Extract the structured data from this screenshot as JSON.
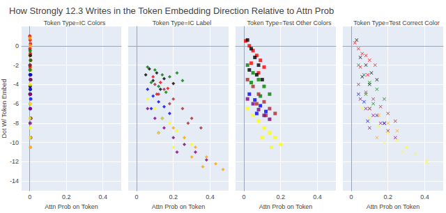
{
  "title": "How Strongly 12.3 Writes in the Token Embedding Direction Relative to Attn Prob",
  "chart_data": [
    {
      "type": "scatter",
      "title": "Token Type=IC Colors",
      "xlabel": "Attn Prob on Token",
      "ylabel": "Dot W/ Token Embed",
      "xlim": [
        -0.045,
        0.5
      ],
      "xticks": [
        0,
        0.2,
        0.4
      ],
      "ylim": [
        -15,
        2
      ],
      "yticks": [
        -14,
        -12,
        -10,
        -8,
        -6,
        -4,
        -2,
        0
      ],
      "grid": true,
      "marker": "circle",
      "series": [
        {
          "color": "#ff0000",
          "x": [
            0,
            0.002,
            0.004,
            0.001,
            0.003,
            0.005,
            0.002
          ],
          "values": [
            1,
            0.6,
            0.2,
            -0.3,
            -0.8,
            -1.5,
            -2.2
          ]
        },
        {
          "color": "#ffa500",
          "x": [
            0.001,
            0.003,
            0,
            0.005,
            0.002,
            0.004
          ],
          "values": [
            0.8,
            0,
            -1,
            -2.5,
            -4,
            -10.5
          ]
        },
        {
          "color": "#008000",
          "x": [
            0.002,
            0.004,
            0.001,
            0.006,
            0.003
          ],
          "values": [
            -0.5,
            -1.5,
            -2.5,
            -3.5,
            -4.5
          ]
        },
        {
          "color": "#000000",
          "x": [
            0.003,
            0.001,
            0.005,
            0.002,
            0.004
          ],
          "values": [
            -1,
            -2,
            -3,
            -4.2,
            -5
          ]
        },
        {
          "color": "#a52a2a",
          "x": [
            0.002,
            0.004,
            0.001,
            0.003,
            0.006
          ],
          "values": [
            -2,
            -3.5,
            -5,
            -6,
            -7.5
          ]
        },
        {
          "color": "#0000ff",
          "x": [
            0.001,
            0.003,
            0.005,
            0.002,
            0.004
          ],
          "values": [
            -3,
            -4.5,
            -5.5,
            -6.5,
            -7.5
          ]
        },
        {
          "color": "#800080",
          "x": [
            0.003,
            0.001,
            0.004,
            0.002,
            0.005
          ],
          "values": [
            -3.5,
            -5,
            -6.5,
            -8,
            -9.5
          ]
        },
        {
          "color": "#ffff00",
          "x": [
            0.002,
            0.004,
            0.001,
            0.003,
            0.002
          ],
          "values": [
            -4,
            -6,
            -7.5,
            -8.5,
            -9.5
          ]
        }
      ]
    },
    {
      "type": "scatter",
      "title": "Token Type=IC Label",
      "xlabel": "Attn Prob on Token",
      "xlim": [
        -0.045,
        0.5
      ],
      "xticks": [
        0,
        0.2,
        0.4
      ],
      "ylim": [
        -15,
        2
      ],
      "yticks": [
        -14,
        -12,
        -10,
        -8,
        -6,
        -4,
        -2,
        0
      ],
      "grid": true,
      "marker": "diamond",
      "tick_labels": "x",
      "series": [
        {
          "color": "#008000",
          "x": [
            0.06,
            0.1,
            0.14,
            0.18,
            0.22,
            0.08,
            0.12,
            0.25,
            0.16
          ],
          "values": [
            -2.2,
            -2.5,
            -3,
            -3.2,
            -2.8,
            -3.8,
            -4.2,
            -3.6,
            -4.8
          ]
        },
        {
          "color": "#000000",
          "x": [
            0.07,
            0.11,
            0.15,
            0.2,
            0.09,
            0.13,
            0.05
          ],
          "values": [
            -2.4,
            -2.8,
            -3.4,
            -3.9,
            -3.6,
            -4.5,
            -3
          ]
        },
        {
          "color": "#ff0000",
          "x": [
            0.09,
            0.13,
            0.17,
            0.11
          ],
          "values": [
            -3.2,
            -3.8,
            -4.4,
            -5
          ]
        },
        {
          "color": "#a52a2a",
          "x": [
            0.1,
            0.15,
            0.2,
            0.25,
            0.3,
            0.35,
            0.18,
            0.28,
            0.12
          ],
          "values": [
            -4,
            -4.5,
            -5.5,
            -6.5,
            -7.5,
            -8.5,
            -6,
            -8,
            -5
          ]
        },
        {
          "color": "#0000ff",
          "x": [
            0.06,
            0.09,
            0.12,
            0.15,
            0.18,
            0.08,
            0.14
          ],
          "values": [
            -4.5,
            -5.2,
            -5.8,
            -6.3,
            -7,
            -6.5,
            -7.5
          ]
        },
        {
          "color": "#800080",
          "x": [
            0.06,
            0.1,
            0.15,
            0.2,
            0.26,
            0.32,
            0.38,
            0.12,
            0.22
          ],
          "values": [
            -6.5,
            -7.5,
            -8.5,
            -9.5,
            -10.2,
            -11,
            -11.8,
            -9,
            -11
          ]
        },
        {
          "color": "#ffff00",
          "x": [
            0.06,
            0.1,
            0.14,
            0.18,
            0.22,
            0.26,
            0.3,
            0.12,
            0.2
          ],
          "values": [
            -5.5,
            -6.5,
            -7.5,
            -8,
            -8.8,
            -9.5,
            -10.2,
            -9,
            -10.5
          ]
        },
        {
          "color": "#ffa500",
          "x": [
            0.2,
            0.26,
            0.32,
            0.38,
            0.43,
            0.47,
            0.3,
            0.36
          ],
          "values": [
            -8.5,
            -9.5,
            -10.5,
            -11.5,
            -12.2,
            -12.8,
            -11.5,
            -12.5
          ]
        }
      ]
    },
    {
      "type": "scatter",
      "title": "Token Type=Test Other Colors",
      "xlabel": "Attn Prob on Token",
      "xlim": [
        -0.045,
        0.5
      ],
      "xticks": [
        0,
        0.2,
        0.4
      ],
      "ylim": [
        -15,
        2
      ],
      "yticks": [
        -14,
        -12,
        -10,
        -8,
        -6,
        -4,
        -2,
        0
      ],
      "grid": true,
      "marker": "square",
      "tick_labels": "x",
      "series": [
        {
          "color": "#ff0000",
          "x": [
            0.01,
            0.03,
            0.05,
            0.07,
            0.09,
            0.11,
            0.04,
            0.08
          ],
          "values": [
            0.5,
            0,
            -0.5,
            -1,
            -1.5,
            -2.2,
            -1.8,
            -2.8
          ]
        },
        {
          "color": "#000000",
          "x": [
            0.02,
            0.04,
            0.06,
            0.08,
            0.03,
            0.07,
            0.1
          ],
          "values": [
            0.6,
            -0.3,
            -1.2,
            -2,
            -2.5,
            -3,
            -3.5
          ]
        },
        {
          "color": "#008000",
          "x": [
            0.02,
            0.05,
            0.08,
            0.11,
            0.14,
            0.04,
            0.09
          ],
          "values": [
            -2,
            -2.8,
            -3.5,
            -4.2,
            -5,
            -3.8,
            -5.2
          ]
        },
        {
          "color": "#a52a2a",
          "x": [
            0.02,
            0.05,
            0.08,
            0.11,
            0.14,
            0.17,
            0.07,
            0.12
          ],
          "values": [
            -3.5,
            -4.2,
            -5,
            -5.8,
            -6.5,
            -7,
            -6,
            -7.2
          ]
        },
        {
          "color": "#0000ff",
          "x": [
            0.03,
            0.06,
            0.09,
            0.12,
            0.07
          ],
          "values": [
            -5,
            -5.6,
            -6.2,
            -6.8,
            -7
          ]
        },
        {
          "color": "#800080",
          "x": [
            0.02,
            0.05,
            0.08,
            0.11,
            0.14
          ],
          "values": [
            -5.5,
            -6,
            -6.6,
            -7.2,
            -7.6
          ]
        },
        {
          "color": "#ffff00",
          "x": [
            0.02,
            0.05,
            0.08,
            0.11,
            0.14,
            0.17,
            0.2,
            0.1,
            0.15
          ],
          "values": [
            -6.5,
            -7.2,
            -7.8,
            -8.5,
            -9,
            -9.5,
            -10.2,
            -9.5,
            -10.5
          ]
        }
      ]
    },
    {
      "type": "scatter",
      "title": "Token Type=Test Correct Color",
      "xlabel": "Attn Prob on Token",
      "xlim": [
        -0.045,
        0.5
      ],
      "xticks": [
        0,
        0.2,
        0.4
      ],
      "ylim": [
        -15,
        2
      ],
      "yticks": [
        -14,
        -12,
        -10,
        -8,
        -6,
        -4,
        -2,
        0
      ],
      "grid": true,
      "marker": "x",
      "tick_labels": "x",
      "series": [
        {
          "color": "#ff0000",
          "x": [
            0.02,
            0.04,
            0.06,
            0.08,
            0.1,
            0.13,
            0.05,
            0.09
          ],
          "values": [
            0.3,
            -0.3,
            -0.8,
            -1,
            -1.5,
            -2,
            -2.2,
            -3
          ]
        },
        {
          "color": "#000000",
          "x": [
            0.03,
            0.05,
            0.08,
            0.11,
            0.14,
            0.06,
            0.1
          ],
          "values": [
            0.6,
            -1.2,
            -2,
            -2.8,
            -3.5,
            -3.2,
            -4
          ]
        },
        {
          "color": "#008000",
          "x": [
            0.04,
            0.07,
            0.1,
            0.14,
            0.18,
            0.08,
            0.12
          ],
          "values": [
            -2,
            -3,
            -3.8,
            -4.5,
            -5.5,
            -5,
            -6
          ]
        },
        {
          "color": "#a52a2a",
          "x": [
            0.04,
            0.08,
            0.12,
            0.16,
            0.2,
            0.24,
            0.1,
            0.18
          ],
          "values": [
            -4,
            -4.8,
            -5.5,
            -6.3,
            -7,
            -7.8,
            -6.5,
            -8
          ]
        },
        {
          "color": "#0000ff",
          "x": [
            0.04,
            0.07,
            0.1,
            0.14,
            0.18,
            0.09
          ],
          "values": [
            -5,
            -5.8,
            -6.5,
            -7.2,
            -8,
            -7.8
          ]
        },
        {
          "color": "#800080",
          "x": [
            0.05,
            0.08,
            0.12,
            0.16,
            0.2,
            0.24,
            0.1
          ],
          "values": [
            -5.5,
            -6.5,
            -7.2,
            -8,
            -8.8,
            -9.5,
            -8.5
          ]
        },
        {
          "color": "#ffa500",
          "x": [
            0.1,
            0.15,
            0.2,
            0.25,
            0.14
          ],
          "values": [
            -6.5,
            -7.2,
            -8,
            -8.8,
            -9.5
          ]
        },
        {
          "color": "#ffff00",
          "x": [
            0.06,
            0.1,
            0.15,
            0.2,
            0.25,
            0.3,
            0.35,
            0.41,
            0.18,
            0.28
          ],
          "values": [
            -6.5,
            -7.5,
            -8.3,
            -9,
            -9.8,
            -10.5,
            -11.2,
            -12,
            -10,
            -11
          ]
        }
      ]
    }
  ]
}
